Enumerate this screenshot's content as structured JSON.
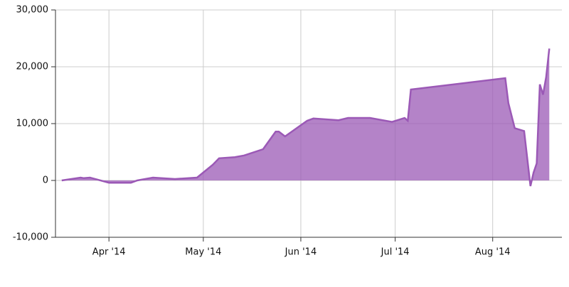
{
  "chart_data": {
    "type": "area",
    "x": [
      76,
      82,
      83,
      85,
      91,
      98,
      100,
      105,
      112,
      119,
      124,
      126,
      131,
      134,
      140,
      144,
      145,
      147,
      154,
      156,
      164,
      167,
      174,
      181,
      185,
      186,
      187,
      217,
      218,
      220,
      223,
      225,
      226,
      227,
      228,
      229,
      230,
      231
    ],
    "values": [
      0,
      500,
      400,
      500,
      -400,
      -400,
      0,
      500,
      250,
      500,
      2750,
      3900,
      4100,
      4400,
      5500,
      8600,
      8600,
      7750,
      10500,
      10900,
      10600,
      11000,
      11000,
      10300,
      11000,
      10500,
      16000,
      18000,
      13600,
      9200,
      8700,
      -1000,
      1400,
      3000,
      16900,
      15100,
      18200,
      23200
    ],
    "color": "#9b59b6",
    "xlim": [
      74,
      235
    ],
    "xticks": [
      {
        "value": 91,
        "label": "Apr '14"
      },
      {
        "value": 121,
        "label": "May '14"
      },
      {
        "value": 152,
        "label": "Jun '14"
      },
      {
        "value": 182,
        "label": "Jul '14"
      },
      {
        "value": 213,
        "label": "Aug '14"
      }
    ],
    "ylim": [
      -10000,
      30000
    ],
    "yticks": [
      {
        "value": -10000,
        "label": "-10,000"
      },
      0,
      {
        "value": 10000,
        "label": "10,000"
      },
      {
        "value": 20000,
        "label": "20,000"
      },
      {
        "value": 30000,
        "label": "30,000"
      }
    ],
    "grid": true
  }
}
